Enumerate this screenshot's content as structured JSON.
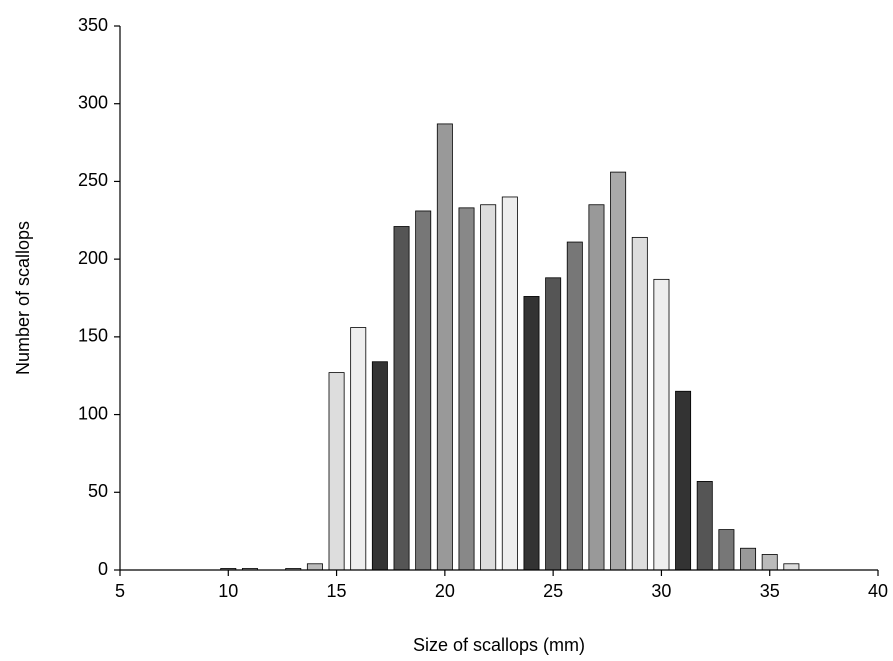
{
  "chart_data": {
    "type": "bar",
    "xlabel": "Size of scallops (mm)",
    "ylabel": "Number of scallops",
    "x": [
      10,
      11,
      13,
      14,
      15,
      16,
      17,
      18,
      19,
      20,
      21,
      22,
      23,
      24,
      25,
      26,
      27,
      28,
      29,
      30,
      31,
      32,
      33,
      34,
      35,
      36
    ],
    "values": [
      1,
      1,
      1,
      4,
      127,
      156,
      134,
      221,
      231,
      287,
      233,
      235,
      240,
      176,
      188,
      211,
      235,
      256,
      214,
      187,
      115,
      57,
      26,
      14,
      10,
      4
    ],
    "colors": [
      "#999999",
      "#bbbbbb",
      "#bbbbbb",
      "#bbbbbb",
      "#dddddd",
      "#eeeeee",
      "#333333",
      "#555555",
      "#777777",
      "#999999",
      "#888888",
      "#dddddd",
      "#eeeeee",
      "#333333",
      "#555555",
      "#777777",
      "#999999",
      "#aaaaaa",
      "#dddddd",
      "#eeeeee",
      "#333333",
      "#555555",
      "#777777",
      "#999999",
      "#bbbbbb",
      "#dddddd"
    ],
    "bar_width": 0.7,
    "xlim": [
      5,
      40
    ],
    "xticks": [
      5,
      10,
      15,
      20,
      25,
      30,
      35,
      40
    ],
    "ylim": [
      0,
      350
    ],
    "yticks": [
      0,
      50,
      100,
      150,
      200,
      250,
      300,
      350
    ],
    "grid": false
  }
}
